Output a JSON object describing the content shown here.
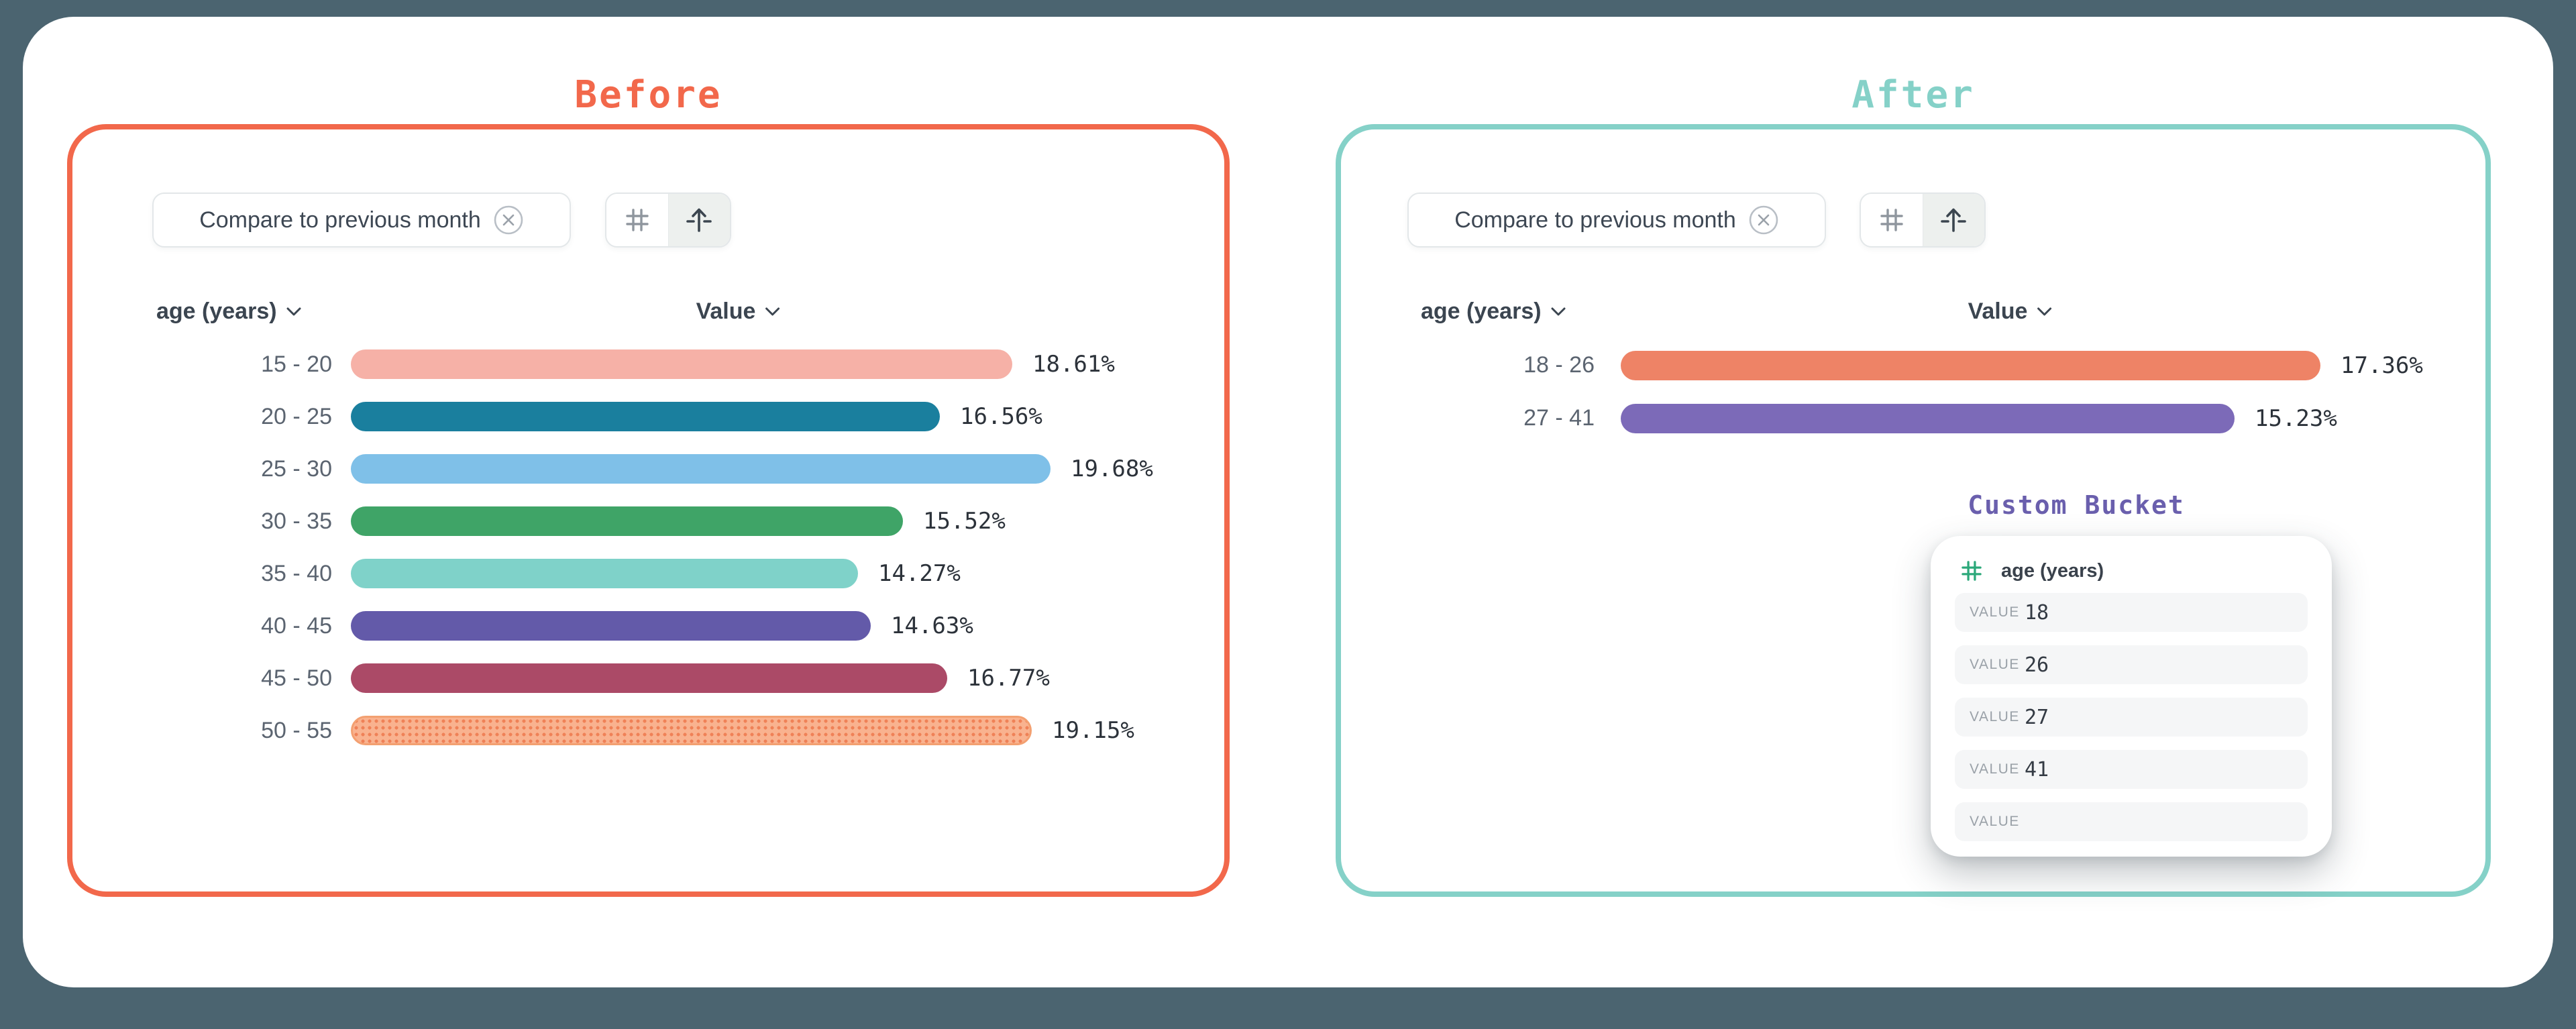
{
  "background_color": "#4b6470",
  "titles": {
    "before": {
      "text": "Before",
      "color": "#f2684b"
    },
    "after": {
      "text": "After",
      "color": "#85d1c8"
    },
    "custom_bucket": {
      "text": "Custom Bucket",
      "color": "#6a5fad"
    }
  },
  "filter_chip": {
    "label": "Compare to previous month"
  },
  "toolbar": {
    "buttons": [
      "number-grid-icon",
      "histogram-icon"
    ],
    "selected": "histogram-icon"
  },
  "columns": {
    "category": "age (years)",
    "value": "Value"
  },
  "chart_data": [
    {
      "type": "bar",
      "orientation": "horizontal",
      "panel": "Before",
      "categories": [
        "15 - 20",
        "20 - 25",
        "25 - 30",
        "30 - 35",
        "35 - 40",
        "40 - 45",
        "45 - 50",
        "50 - 55"
      ],
      "values": [
        18.61,
        16.56,
        19.68,
        15.52,
        14.27,
        14.63,
        16.77,
        19.15
      ],
      "labels": [
        "18.61%",
        "16.56%",
        "19.68%",
        "15.52%",
        "14.27%",
        "14.63%",
        "16.77%",
        "19.15%"
      ],
      "colors": [
        "#f6b1a7",
        "#1a7f9e",
        "#7fc0e8",
        "#3fa467",
        "#7fd2c9",
        "#635aa9",
        "#ab4a67",
        "#f9b28f"
      ],
      "patterns": [
        false,
        false,
        false,
        false,
        false,
        false,
        false,
        true
      ],
      "xlabel": "Value",
      "ylabel": "age (years)",
      "xlim": [
        0,
        19.68
      ],
      "grid": false,
      "legend": false
    },
    {
      "type": "bar",
      "orientation": "horizontal",
      "panel": "After",
      "categories": [
        "18 - 26",
        "27 - 41"
      ],
      "values": [
        17.36,
        15.23
      ],
      "labels": [
        "17.36%",
        "15.23%"
      ],
      "colors": [
        "#ee8366",
        "#7c6ab8"
      ],
      "patterns": [
        false,
        false
      ],
      "xlabel": "Value",
      "ylabel": "age (years)",
      "xlim": [
        0,
        17.36
      ],
      "grid": false,
      "legend": false
    }
  ],
  "custom_bucket_card": {
    "field_icon": "number-hash-icon",
    "field_icon_color": "#2ca87a",
    "field_label": "age (years)",
    "rows": [
      {
        "label": "VALUE",
        "value": "18"
      },
      {
        "label": "VALUE",
        "value": "26"
      },
      {
        "label": "VALUE",
        "value": "27"
      },
      {
        "label": "VALUE",
        "value": "41"
      },
      {
        "label": "VALUE",
        "value": ""
      }
    ]
  }
}
